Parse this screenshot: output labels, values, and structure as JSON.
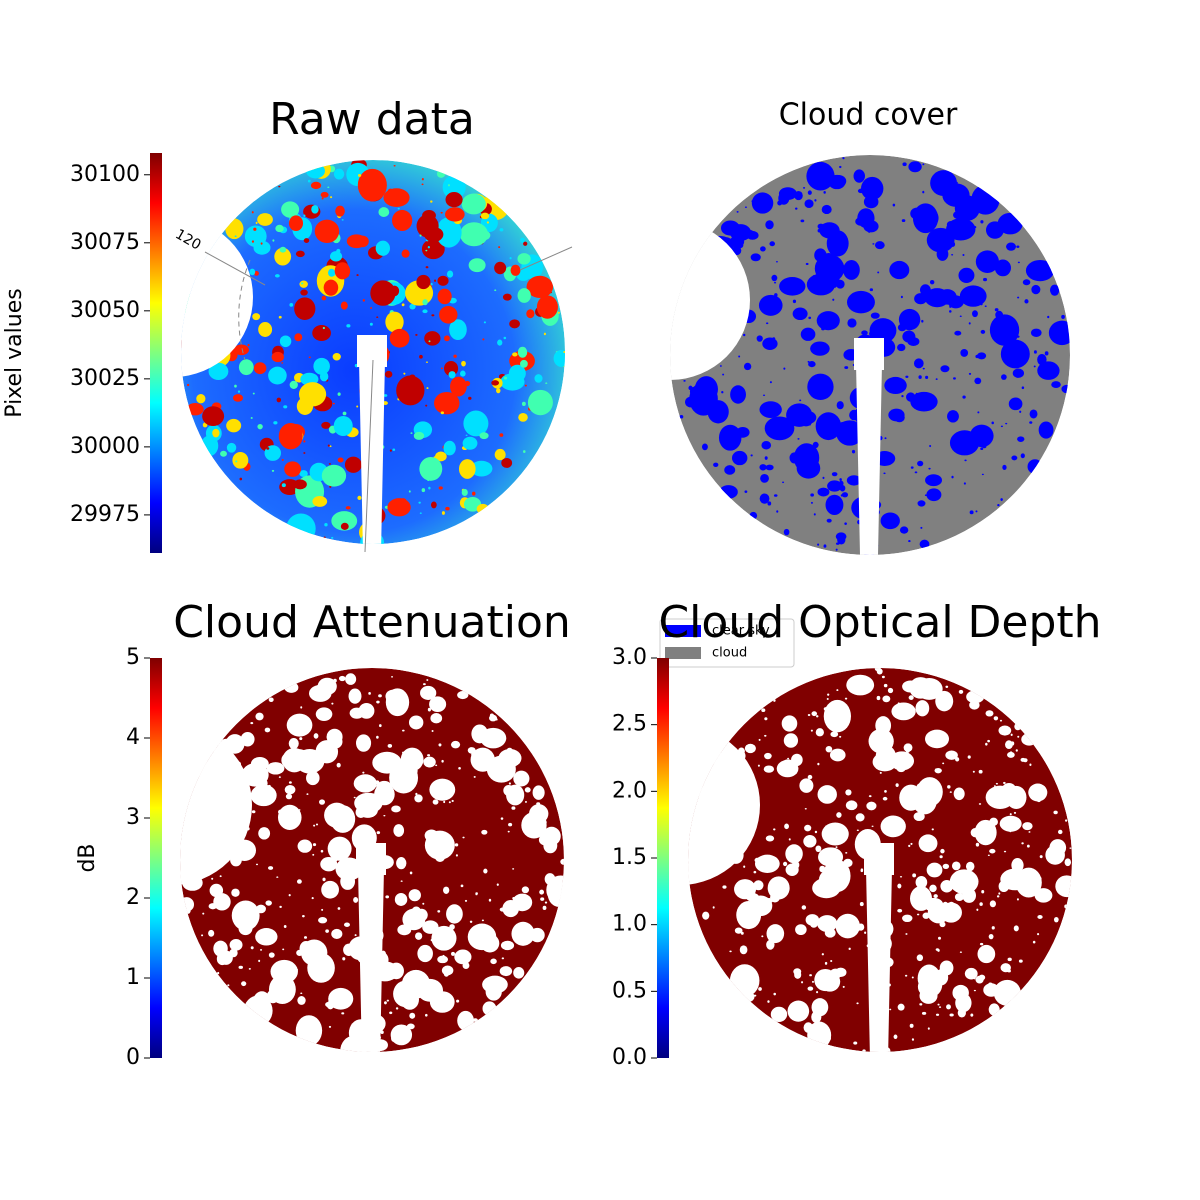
{
  "chart_data": [
    {
      "type": "image",
      "title": "Raw data",
      "ylabel": "Pixel values",
      "colormap": "jet",
      "ylim": [
        29961,
        30108
      ],
      "yticks": [
        29975,
        30000,
        30025,
        30050,
        30075,
        30100
      ],
      "annotations": [
        "120"
      ]
    },
    {
      "type": "image",
      "title": "Cloud cover",
      "series": [
        {
          "name": "clear sky",
          "color": "#0000ff"
        },
        {
          "name": "cloud",
          "color": "#808080"
        }
      ]
    },
    {
      "type": "image",
      "title": "Cloud Attenuation",
      "ylabel": "dB",
      "colormap": "jet",
      "ylim": [
        0,
        5
      ],
      "yticks": [
        0,
        1,
        2,
        3,
        4,
        5
      ]
    },
    {
      "type": "image",
      "title": "Cloud Optical Depth",
      "colormap": "jet",
      "ylim": [
        0,
        3
      ],
      "yticks": [
        {
          "value": 0,
          "label": "0.0"
        },
        {
          "value": 0.5,
          "label": "0.5"
        },
        {
          "value": 1,
          "label": "1.0"
        },
        {
          "value": 1.5,
          "label": "1.5"
        },
        {
          "value": 2,
          "label": "2.0"
        },
        {
          "value": 2.5,
          "label": "2.5"
        },
        {
          "value": 3,
          "label": "3.0"
        }
      ]
    }
  ]
}
